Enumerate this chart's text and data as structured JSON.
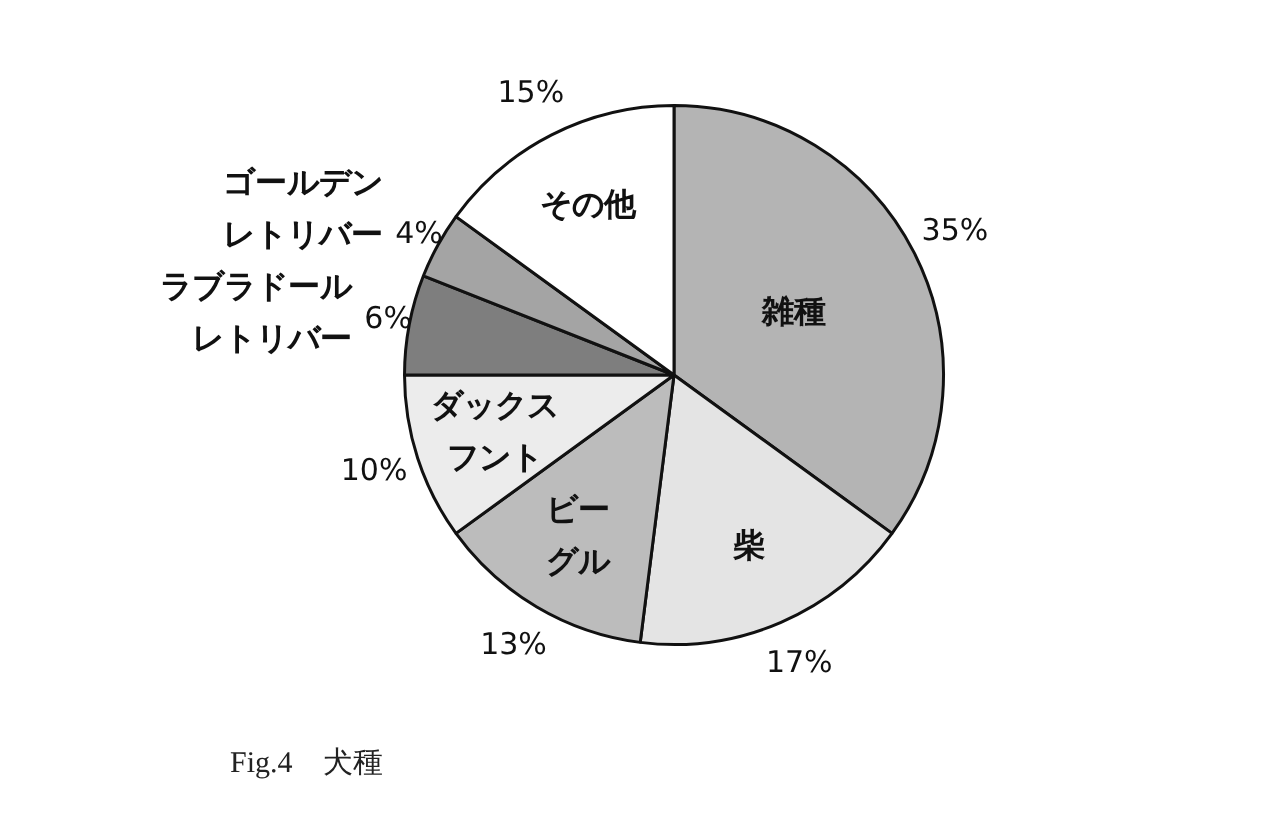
{
  "chart_data": {
    "type": "pie",
    "categories": [
      "雑種",
      "柴",
      "ビーグル",
      "ダックスフント",
      "ラブラドールレトリバー",
      "ゴールデンレトリバー",
      "その他"
    ],
    "values": [
      35,
      17,
      13,
      10,
      6,
      4,
      15
    ],
    "value_labels": [
      "35%",
      "17%",
      "13%",
      "10%",
      "6%",
      "4%",
      "15%"
    ],
    "colors": [
      "#b4b4b4",
      "#e4e4e4",
      "#bcbcbc",
      "#ececec",
      "#7e7e7e",
      "#a4a4a4",
      "#ffffff"
    ],
    "legend": false,
    "annotations": [
      "Fig.4　犬種"
    ]
  }
}
